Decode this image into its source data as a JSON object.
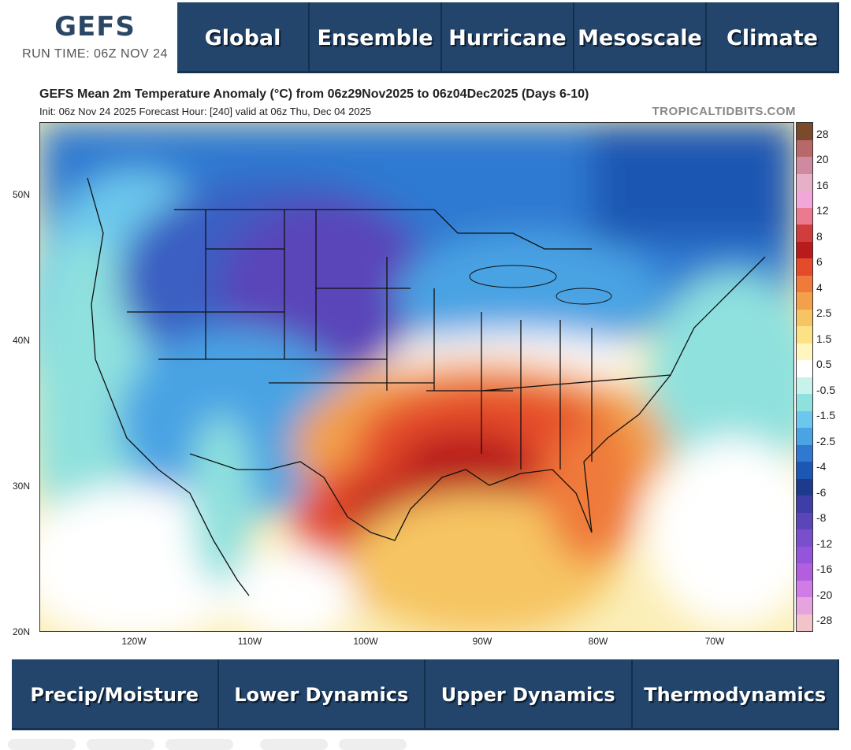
{
  "brand": {
    "title": "GEFS",
    "run_time": "RUN TIME: 06Z NOV 24"
  },
  "top_nav": [
    "Global",
    "Ensemble",
    "Hurricane",
    "Mesoscale",
    "Climate"
  ],
  "bottom_nav": [
    "Precip/Moisture",
    "Lower Dynamics",
    "Upper Dynamics",
    "Thermodynamics"
  ],
  "chart": {
    "title": "GEFS Mean 2m Temperature Anomaly (°C) from 06z29Nov2025 to 06z04Dec2025 (Days 6-10)",
    "subtitle": "Init: 06z Nov 24 2025   Forecast Hour: [240]   valid at 06z Thu, Dec 04 2025",
    "credit": "TROPICALTIDBITS.COM"
  },
  "chart_data": {
    "type": "heatmap",
    "title": "GEFS Mean 2m Temperature Anomaly (°C) from 06z29Nov2025 to 06z04Dec2025 (Days 6-10)",
    "latitude_ticks": [
      "50N",
      "40N",
      "30N",
      "20N"
    ],
    "longitude_ticks": [
      "120W",
      "110W",
      "100W",
      "90W",
      "80W",
      "70W"
    ],
    "colorbar_ticks": [
      "28",
      "20",
      "16",
      "12",
      "8",
      "6",
      "4",
      "2.5",
      "1.5",
      "0.5",
      "-0.5",
      "-1.5",
      "-2.5",
      "-4",
      "-6",
      "-8",
      "-12",
      "-16",
      "-20",
      "-28"
    ],
    "colorbar_colors": [
      "#7a4a2a",
      "#b86868",
      "#cf8aa0",
      "#e6b1c6",
      "#f3a7d8",
      "#ec7a8e",
      "#d13c3c",
      "#b81b1b",
      "#e54b2b",
      "#ef7a3a",
      "#f3a04b",
      "#f6c462",
      "#fbe385",
      "#fff6bf",
      "#ffffff",
      "#c8f2ec",
      "#8fe1de",
      "#6cc7ec",
      "#4aa3e3",
      "#2f79d1",
      "#1c57b3",
      "#1e3a8c",
      "#3e3ea8",
      "#5a45b9",
      "#7a4fce",
      "#9455dc",
      "#b15edf",
      "#d07ce6",
      "#e5a3df",
      "#f2c3c9"
    ]
  },
  "colors": {
    "nav_bg": "#23456b",
    "brand": "#2b4766"
  }
}
